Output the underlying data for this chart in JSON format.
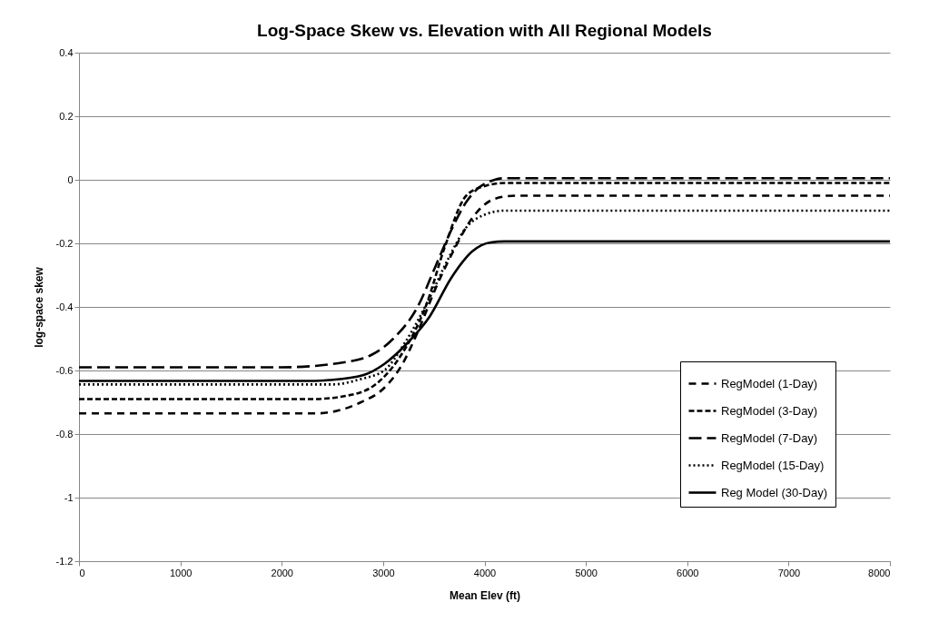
{
  "chart_data": {
    "type": "line",
    "title": "Log-Space Skew vs. Elevation with All Regional Models",
    "xlabel": "Mean Elev (ft)",
    "ylabel": "log-space skew",
    "xlim": [
      0,
      8000
    ],
    "xticks": [
      0,
      1000,
      2000,
      3000,
      4000,
      5000,
      6000,
      7000,
      8000
    ],
    "ylim": [
      -1.2,
      0.4
    ],
    "yticks": [
      -1.2,
      -1,
      -0.8,
      -0.6,
      -0.4,
      -0.2,
      0,
      0.2,
      0.4
    ],
    "grid": "y",
    "legend": "bottom right",
    "marker": "none",
    "series": [
      {
        "name": "RegModel (1-Day)",
        "color": "#000000",
        "line_style": "dashed",
        "x": [
          0,
          2330,
          2780,
          3010,
          3190,
          3340,
          3520,
          3700,
          3880,
          4100,
          4300,
          8000
        ],
        "values": [
          -0.735,
          -0.735,
          -0.7,
          -0.655,
          -0.58,
          -0.48,
          -0.34,
          -0.22,
          -0.12,
          -0.06,
          -0.05,
          -0.05
        ]
      },
      {
        "name": "RegModel (3-Day)",
        "color": "#000000",
        "line_style": "dashed",
        "x": [
          0,
          2300,
          2630,
          2920,
          3160,
          3430,
          3610,
          3820,
          4000,
          4200,
          8000
        ],
        "values": [
          -0.69,
          -0.69,
          -0.68,
          -0.645,
          -0.56,
          -0.39,
          -0.21,
          -0.05,
          -0.02,
          -0.01,
          -0.01
        ]
      },
      {
        "name": "RegModel (7-Day)",
        "color": "#000000",
        "line_style": "dashed",
        "x": [
          0,
          2000,
          2560,
          2890,
          3100,
          3340,
          3520,
          3670,
          3820,
          3940,
          4100,
          4200,
          8000
        ],
        "values": [
          -0.59,
          -0.59,
          -0.577,
          -0.55,
          -0.5,
          -0.4,
          -0.27,
          -0.16,
          -0.07,
          -0.026,
          0,
          0.005,
          0.005
        ]
      },
      {
        "name": "RegModel (15-Day)",
        "color": "#000000",
        "line_style": "dotted",
        "x": [
          0,
          2500,
          2780,
          3010,
          3220,
          3430,
          3640,
          3820,
          4000,
          4200,
          8000
        ],
        "values": [
          -0.644,
          -0.644,
          -0.627,
          -0.6,
          -0.51,
          -0.39,
          -0.25,
          -0.15,
          -0.11,
          -0.097,
          -0.097
        ]
      },
      {
        "name": "Reg Model (30-Day)",
        "color": "#000000",
        "line_style": "solid",
        "x": [
          0,
          2300,
          2470,
          2800,
          3010,
          3220,
          3460,
          3670,
          3880,
          4060,
          4200,
          8000
        ],
        "values": [
          -0.633,
          -0.633,
          -0.63,
          -0.615,
          -0.58,
          -0.52,
          -0.43,
          -0.31,
          -0.225,
          -0.197,
          -0.194,
          -0.194
        ]
      }
    ]
  }
}
